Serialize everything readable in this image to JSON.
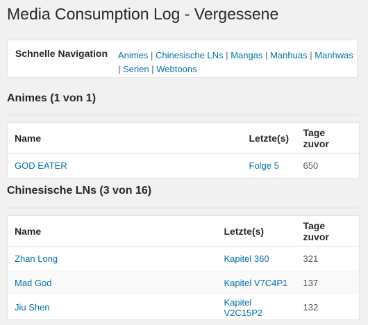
{
  "page": {
    "title": "Media Consumption Log - Vergessene"
  },
  "nav": {
    "label": "Schnelle Navigation",
    "links": [
      "Animes",
      "Chinesische LNs",
      "Mangas",
      "Manhuas",
      "Manhwas",
      "Serien",
      "Webtoons"
    ],
    "separator": "|"
  },
  "sections": [
    {
      "title": "Animes (1 von 1)",
      "columns": [
        "Name",
        "Letzte(s)",
        "Tage zuvor"
      ],
      "rows": [
        {
          "name": "GOD EATER",
          "latest": "Folge 5",
          "days": "650"
        }
      ]
    },
    {
      "title": "Chinesische LNs (3 von 16)",
      "columns": [
        "Name",
        "Letzte(s)",
        "Tage zuvor"
      ],
      "rows": [
        {
          "name": "Zhan Long",
          "latest": "Kapitel 360",
          "days": "321"
        },
        {
          "name": "Mad God",
          "latest": "Kapitel V7C4P1",
          "days": "137"
        },
        {
          "name": "Jiu Shen",
          "latest": "Kapitel V2C15P2",
          "days": "132"
        }
      ]
    }
  ],
  "colors": {
    "link": "#0073aa",
    "text": "#23282d",
    "background": "#f1f1f1"
  }
}
